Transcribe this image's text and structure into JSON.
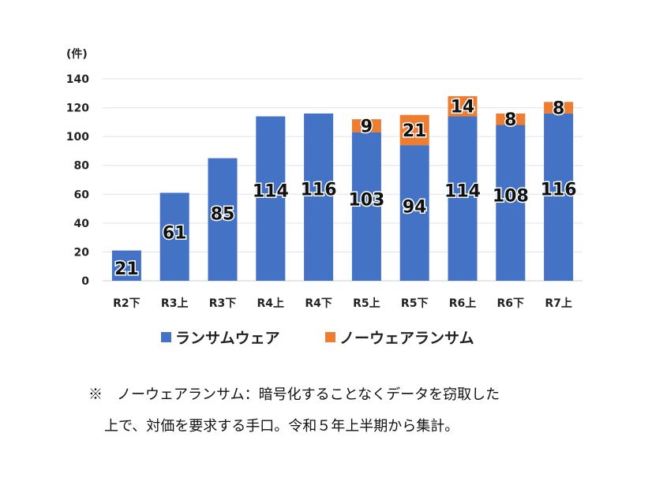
{
  "chart_data": {
    "type": "bar",
    "stacked": true,
    "unit_label": "(件)",
    "categories": [
      "R2下",
      "R3上",
      "R3下",
      "R4上",
      "R4下",
      "R5上",
      "R5下",
      "R6上",
      "R6下",
      "R7上"
    ],
    "series": [
      {
        "name": "ランサムウェア",
        "color": "#4472C4",
        "values": [
          21,
          61,
          85,
          114,
          116,
          103,
          94,
          114,
          108,
          116
        ]
      },
      {
        "name": "ノーウェアランサム",
        "color": "#ED7D31",
        "values": [
          null,
          null,
          null,
          null,
          null,
          9,
          21,
          14,
          8,
          8
        ]
      }
    ],
    "ylim": [
      0,
      140
    ],
    "yticks": [
      0,
      20,
      40,
      60,
      80,
      100,
      120,
      140
    ],
    "grid": true,
    "legend_position": "bottom"
  },
  "note": {
    "line1": "※　ノーウェアランサム：暗号化することなくデータを窃取した",
    "line2": "上で、対価を要求する手口。令和５年上半期から集計。"
  }
}
